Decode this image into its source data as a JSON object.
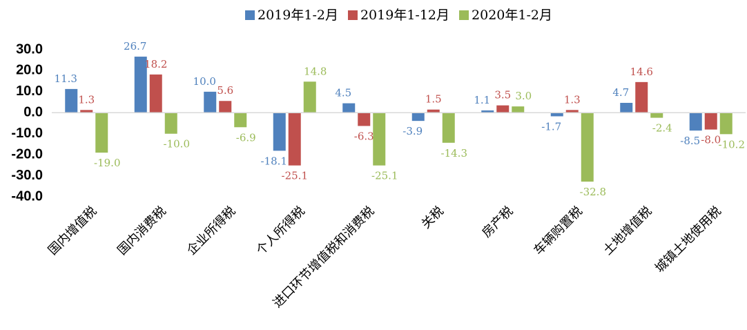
{
  "chart_data": {
    "type": "bar",
    "categories": [
      "国内增值税",
      "国内消费税",
      "企业所得税",
      "个人所得税",
      "进口环节增值税和消费税",
      "关税",
      "房产税",
      "车辆购置税",
      "土地增值税",
      "城镇土地使用税"
    ],
    "series": [
      {
        "name": "2019年1-2月",
        "color": "#4f81bd",
        "values": [
          11.3,
          26.7,
          10.0,
          -18.1,
          4.5,
          -3.9,
          1.1,
          -1.7,
          4.7,
          -8.5
        ],
        "value_labels": [
          "11.3",
          "26.7",
          "10.0",
          "-18.1",
          "4.5",
          "-3.9",
          "1.1",
          "-1.7",
          "4.7",
          "-8.5"
        ]
      },
      {
        "name": "2019年1-12月",
        "color": "#c0504d",
        "values": [
          1.3,
          18.2,
          5.6,
          -25.1,
          -6.3,
          1.5,
          3.5,
          1.3,
          14.6,
          -8.0
        ],
        "value_labels": [
          "1.3",
          "18.2",
          "5.6",
          "-25.1",
          "-6.3",
          "1.5",
          "3.5",
          "1.3",
          "14.6",
          "-8.0"
        ]
      },
      {
        "name": "2020年1-2月",
        "color": "#9bbb59",
        "values": [
          -19.0,
          -10.0,
          -6.9,
          14.8,
          -25.1,
          -14.3,
          3.0,
          -32.8,
          -2.4,
          -10.2
        ],
        "value_labels": [
          "-19.0",
          "-10.0",
          "-6.9",
          "14.8",
          "-25.1",
          "-14.3",
          "3.0",
          "-32.8",
          "-2.4",
          "-10.2"
        ]
      }
    ],
    "ylim": [
      -40,
      30
    ],
    "yticks": [
      {
        "value": 30,
        "label": "30.0"
      },
      {
        "value": 20,
        "label": "20.0"
      },
      {
        "value": 10,
        "label": "10.0"
      },
      {
        "value": 0,
        "label": "0.0"
      },
      {
        "value": -10,
        "label": "-10.0"
      },
      {
        "value": -20,
        "label": "-20.0"
      },
      {
        "value": -30,
        "label": "-30.0"
      },
      {
        "value": -40,
        "label": "-40.0"
      }
    ],
    "grid": false,
    "legend": "top"
  }
}
